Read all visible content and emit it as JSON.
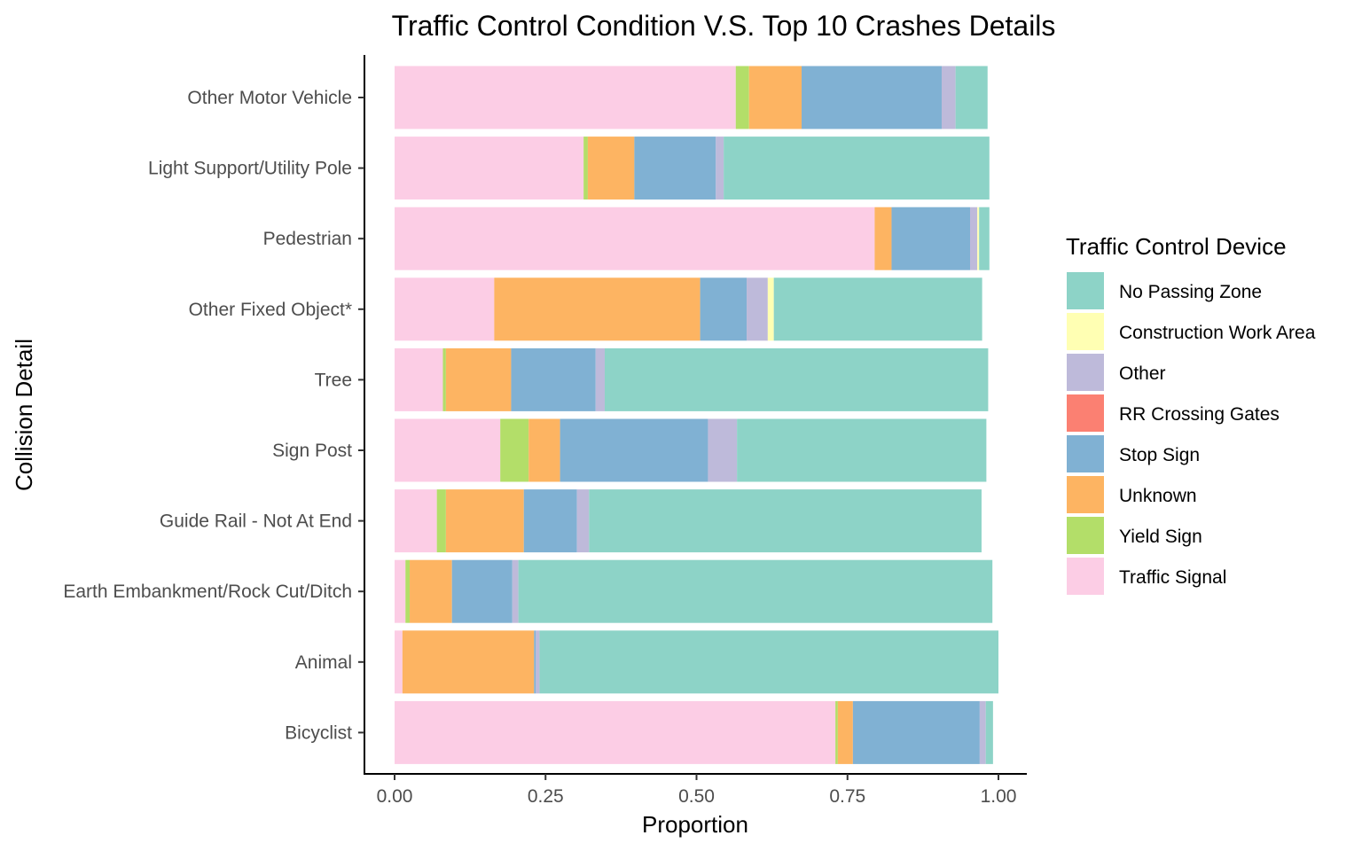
{
  "chart_data": {
    "type": "bar",
    "orientation": "horizontal",
    "stacked": true,
    "title": "Traffic Control Condition V.S. Top 10 Crashes Details",
    "xlabel": "Proportion",
    "ylabel": "Collision Detail",
    "xlim": [
      0,
      1
    ],
    "x_ticks": [
      "0.00",
      "0.25",
      "0.50",
      "0.75",
      "1.00"
    ],
    "x_tick_values": [
      0,
      0.25,
      0.5,
      0.75,
      1.0
    ],
    "grid": false,
    "legend_position": "right",
    "legend_title": "Traffic Control Device",
    "categories": [
      "Other Motor Vehicle",
      "Light Support/Utility Pole",
      "Pedestrian",
      "Other Fixed Object*",
      "Tree",
      "Sign Post",
      "Guide Rail - Not At End",
      "Earth Embankment/Rock Cut/Ditch",
      "Animal",
      "Bicyclist"
    ],
    "stack_order": [
      "Traffic Signal",
      "Yield Sign",
      "Unknown",
      "Stop Sign",
      "RR Crossing Gates",
      "Other",
      "Construction Work Area",
      "No Passing Zone"
    ],
    "legend_order": [
      "No Passing Zone",
      "Construction Work Area",
      "Other",
      "RR Crossing Gates",
      "Stop Sign",
      "Unknown",
      "Yield Sign",
      "Traffic Signal"
    ],
    "series": [
      {
        "name": "Traffic Signal",
        "color": "#FCCDE5",
        "values": [
          0.565,
          0.313,
          0.795,
          0.165,
          0.08,
          0.175,
          0.07,
          0.018,
          0.013,
          0.73
        ]
      },
      {
        "name": "Yield Sign",
        "color": "#B3DE69",
        "values": [
          0.022,
          0.007,
          0.0,
          0.0,
          0.005,
          0.047,
          0.015,
          0.007,
          0.0,
          0.004
        ]
      },
      {
        "name": "Unknown",
        "color": "#FDB462",
        "values": [
          0.087,
          0.077,
          0.028,
          0.341,
          0.108,
          0.052,
          0.129,
          0.07,
          0.218,
          0.025
        ]
      },
      {
        "name": "Stop Sign",
        "color": "#80B1D3",
        "values": [
          0.232,
          0.135,
          0.13,
          0.077,
          0.14,
          0.245,
          0.088,
          0.1,
          0.003,
          0.21
        ]
      },
      {
        "name": "RR Crossing Gates",
        "color": "#FB8072",
        "values": [
          0.0,
          0.0,
          0.0,
          0.0,
          0.0,
          0.0,
          0.0,
          0.0,
          0.0,
          0.0
        ]
      },
      {
        "name": "Other",
        "color": "#BEBADA",
        "values": [
          0.023,
          0.013,
          0.012,
          0.035,
          0.015,
          0.048,
          0.02,
          0.01,
          0.006,
          0.01
        ]
      },
      {
        "name": "Construction Work Area",
        "color": "#FFFFB3",
        "values": [
          0.0,
          0.0,
          0.003,
          0.01,
          0.0,
          0.0,
          0.0,
          0.0,
          0.0,
          0.0
        ]
      },
      {
        "name": "No Passing Zone",
        "color": "#8DD3C7",
        "values": [
          0.053,
          0.44,
          0.017,
          0.345,
          0.635,
          0.413,
          0.65,
          0.785,
          0.76,
          0.012
        ]
      }
    ]
  }
}
